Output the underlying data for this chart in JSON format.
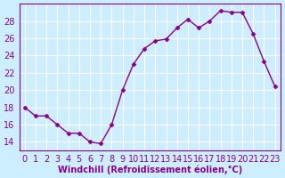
{
  "x": [
    0,
    1,
    2,
    3,
    4,
    5,
    6,
    7,
    8,
    9,
    10,
    11,
    12,
    13,
    14,
    15,
    16,
    17,
    18,
    19,
    20,
    21,
    22,
    23
  ],
  "y": [
    18,
    17,
    17,
    16,
    15,
    15,
    14,
    13.8,
    16,
    20,
    23,
    24.8,
    25.7,
    25.9,
    27.2,
    28.2,
    27.2,
    28,
    29.2,
    29,
    29,
    26.5,
    23.3,
    20.4
  ],
  "line_color": "#8B008B",
  "marker_color": "#8B008B",
  "bg_color": "#cceeff",
  "grid_color": "#ffffff",
  "xlabel": "Windchill (Refroidissement éolien,°C)",
  "ylabel_ticks": [
    14,
    16,
    18,
    20,
    22,
    24,
    26,
    28
  ],
  "ylim": [
    13,
    30
  ],
  "xlim": [
    -0.5,
    23.5
  ],
  "tick_color": "#8B008B",
  "font_size": 7
}
